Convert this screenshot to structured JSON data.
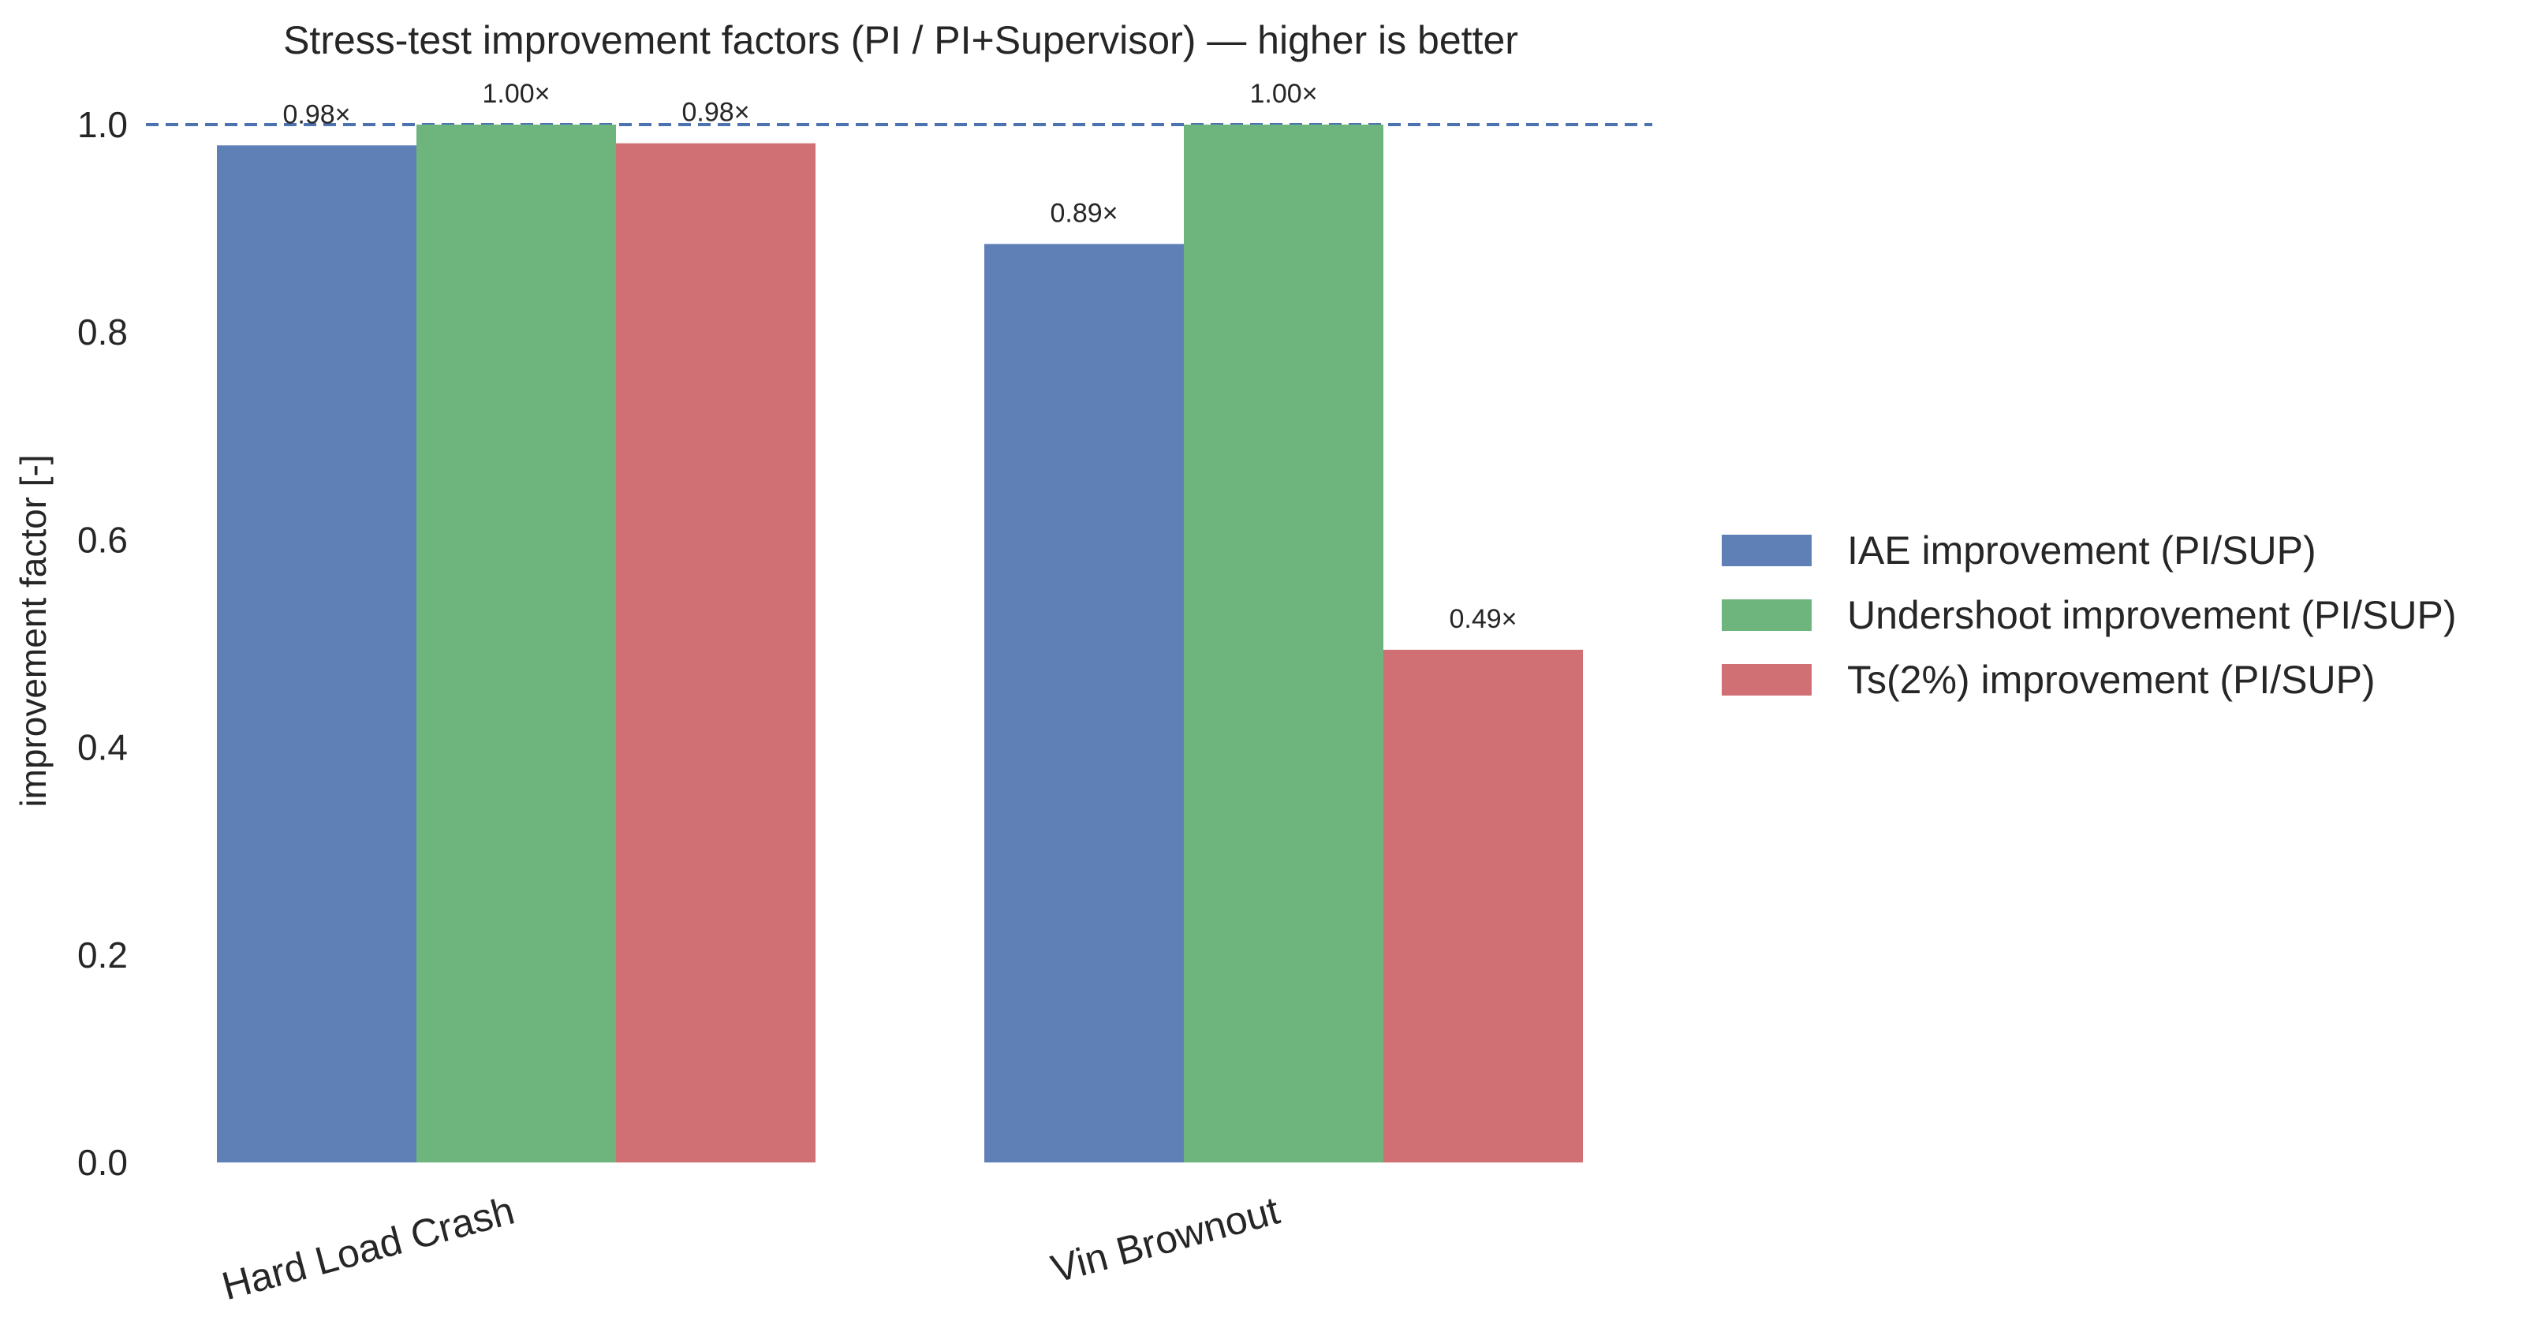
{
  "chart_data": {
    "type": "bar",
    "title": "Stress-test improvement factors (PI / PI+Supervisor) — higher is better",
    "xlabel": "",
    "ylabel": "improvement factor [-]",
    "ylim": [
      0,
      1.0
    ],
    "yticks": [
      0.0,
      0.2,
      0.4,
      0.6,
      0.8,
      1.0
    ],
    "ytick_labels": [
      "0.0",
      "0.2",
      "0.4",
      "0.6",
      "0.8",
      "1.0"
    ],
    "categories": [
      "Hard Load Crash",
      "Vin Brownout"
    ],
    "series": [
      {
        "name": "IAE improvement (PI/SUP)",
        "color": "#5f80b6",
        "values": [
          0.98,
          0.885
        ],
        "labels": [
          "0.98×",
          "0.89×"
        ]
      },
      {
        "name": "Undershoot improvement (PI/SUP)",
        "color": "#6db57d",
        "values": [
          1.0,
          1.0
        ],
        "labels": [
          "1.00×",
          "1.00×"
        ]
      },
      {
        "name": "Ts(2%) improvement (PI/SUP)",
        "color": "#d07074",
        "values": [
          0.982,
          0.494
        ],
        "labels": [
          "0.98×",
          "0.49×"
        ]
      }
    ],
    "reference_line": {
      "y": 1.0,
      "style": "dashed",
      "color": "#4c72b0"
    },
    "grid": false,
    "legend": "right"
  }
}
